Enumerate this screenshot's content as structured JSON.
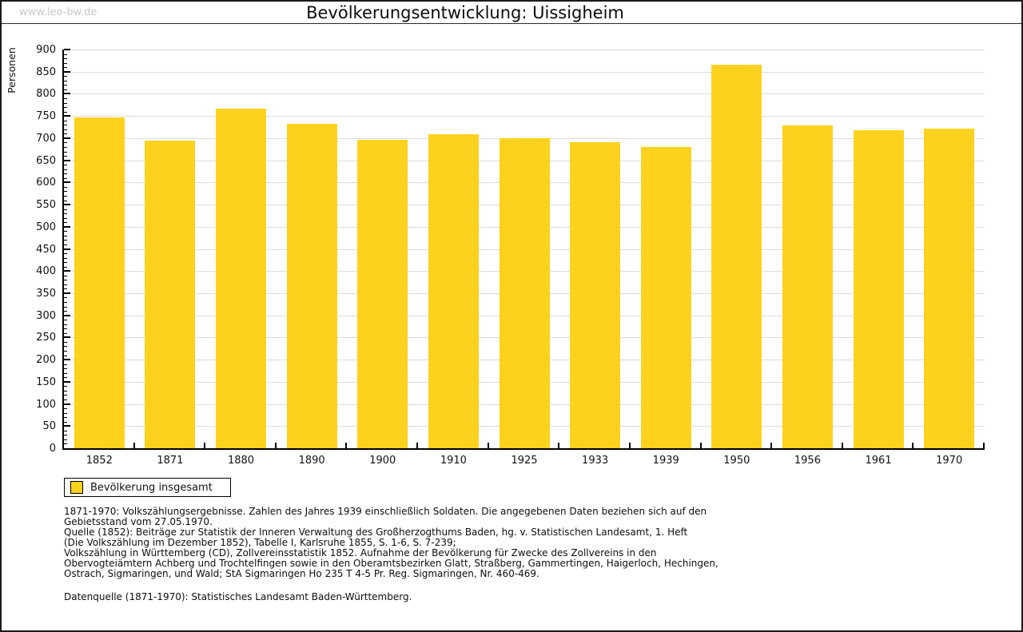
{
  "page": {
    "watermark": "www.leo-bw.de"
  },
  "chart_data": {
    "type": "bar",
    "title": "Bevölkerungsentwicklung: Uissigheim",
    "ylabel": "Personen",
    "xlabel": "",
    "ylim": [
      0,
      900
    ],
    "ytick_step": 50,
    "minor_tick_step": 10,
    "grid": true,
    "legend_position": "bottom-left",
    "categories": [
      "1852",
      "1871",
      "1880",
      "1890",
      "1900",
      "1910",
      "1925",
      "1933",
      "1939",
      "1950",
      "1956",
      "1961",
      "1970"
    ],
    "series": [
      {
        "name": "Bevölkerung insgesamt",
        "values": [
          747,
          695,
          766,
          732,
          697,
          709,
          700,
          690,
          680,
          866,
          728,
          717,
          721
        ]
      }
    ]
  },
  "footer": {
    "lines": [
      "1871-1970: Volkszählungsergebnisse. Zahlen des Jahres 1939 einschließlich Soldaten. Die angegebenen Daten beziehen sich auf den",
      "Gebietsstand vom 27.05.1970.",
      "Quelle (1852): Beiträge zur Statistik der Inneren Verwaltung des Großherzogthums Baden, hg. v. Statistischen Landesamt, 1. Heft",
      "(Die Volkszählung im Dezember 1852), Tabelle I, Karlsruhe 1855, S. 1-6, S. 7-239;",
      "Volkszählung in Württemberg (CD), Zollvereinsstatistik 1852. Aufnahme der Bevölkerung für Zwecke des Zollvereins in den",
      "Obervogteiämtern Achberg und Trochtelfingen sowie in den Oberamtsbezirken Glatt, Straßberg, Gammertingen, Haigerloch, Hechingen,",
      "Ostrach, Sigmaringen, und Wald; StA Sigmaringen Ho 235 T 4-5 Pr. Reg. Sigmaringen, Nr. 460-469."
    ],
    "datasource": "Datenquelle (1871-1970): Statistisches Landesamt Baden-Württemberg."
  },
  "colors": {
    "bar": "#FCD21E",
    "grid": "#DCDCDC",
    "watermark": "#C9C9C9",
    "frame": "#1A1A1A"
  }
}
